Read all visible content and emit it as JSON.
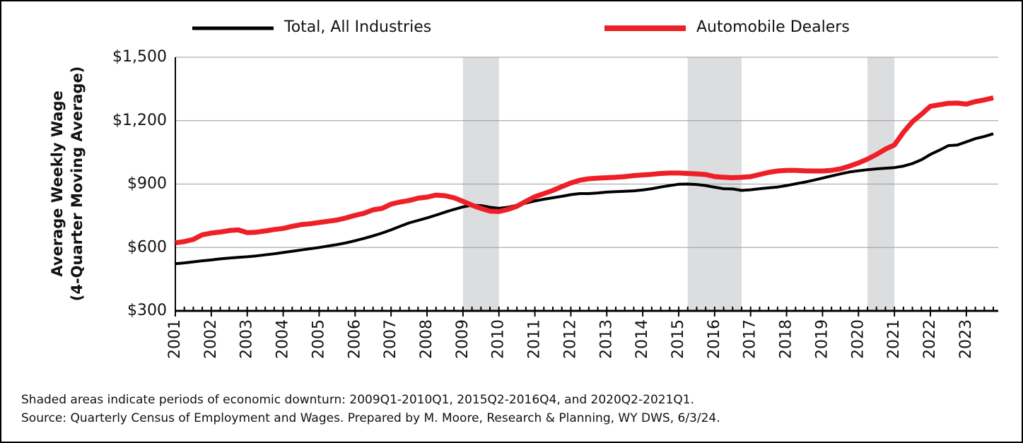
{
  "chart_data": {
    "type": "line",
    "legend": "top",
    "ylabel": [
      "Average Weekly Wage",
      "(4-Quarter Moving Average)"
    ],
    "notes": [
      "Shaded areas indicate periods of economic downturn: 2009Q1-2010Q1, 2015Q2-2016Q4, and 2020Q2-2021Q1.",
      "Source: Quarterly Census of Employment and Wages. Prepared by M. Moore, Research & Planning, WY DWS, 6/3/24."
    ],
    "shaded": [
      [
        2009,
        2010
      ],
      [
        2015.25,
        2016.75
      ],
      [
        2020.25,
        2021
      ]
    ],
    "shade_color": "#dcdddf",
    "grid": true,
    "xlim": [
      2001,
      2023.75
    ],
    "xticks": [
      2001,
      2002,
      2003,
      2004,
      2005,
      2006,
      2007,
      2008,
      2009,
      2010,
      2011,
      2012,
      2013,
      2014,
      2015,
      2016,
      2017,
      2018,
      2019,
      2020,
      2021,
      2022,
      2023
    ],
    "ylim": [
      300,
      1500
    ],
    "yticks": [
      {
        "value": 300,
        "label": "$300"
      },
      {
        "value": 600,
        "label": "$600"
      },
      {
        "value": 900,
        "label": "$900"
      },
      {
        "value": 1200,
        "label": "$1,200"
      },
      {
        "value": 1500,
        "label": "$1,500"
      }
    ],
    "x": [
      2001,
      2001.25,
      2001.5,
      2001.75,
      2002,
      2002.25,
      2002.5,
      2002.75,
      2003,
      2003.25,
      2003.5,
      2003.75,
      2004,
      2004.25,
      2004.5,
      2004.75,
      2005,
      2005.25,
      2005.5,
      2005.75,
      2006,
      2006.25,
      2006.5,
      2006.75,
      2007,
      2007.25,
      2007.5,
      2007.75,
      2008,
      2008.25,
      2008.5,
      2008.75,
      2009,
      2009.25,
      2009.5,
      2009.75,
      2010,
      2010.25,
      2010.5,
      2010.75,
      2011,
      2011.25,
      2011.5,
      2011.75,
      2012,
      2012.25,
      2012.5,
      2012.75,
      2013,
      2013.25,
      2013.5,
      2013.75,
      2014,
      2014.25,
      2014.5,
      2014.75,
      2015,
      2015.25,
      2015.5,
      2015.75,
      2016,
      2016.25,
      2016.5,
      2016.75,
      2017,
      2017.25,
      2017.5,
      2017.75,
      2018,
      2018.25,
      2018.5,
      2018.75,
      2019,
      2019.25,
      2019.5,
      2019.75,
      2020,
      2020.25,
      2020.5,
      2020.75,
      2021,
      2021.25,
      2021.5,
      2021.75,
      2022,
      2022.25,
      2022.5,
      2022.75,
      2023,
      2023.25,
      2023.5,
      2023.75
    ],
    "series": [
      {
        "name": "Total, All Industries",
        "color": "#000000",
        "values": [
          523,
          527,
          532,
          537,
          541,
          546,
          550,
          553,
          556,
          560,
          565,
          570,
          576,
          582,
          588,
          594,
          600,
          607,
          614,
          622,
          632,
          643,
          655,
          668,
          683,
          700,
          716,
          728,
          740,
          753,
          767,
          780,
          792,
          800,
          798,
          790,
          785,
          790,
          800,
          810,
          820,
          828,
          835,
          842,
          850,
          855,
          855,
          858,
          862,
          864,
          866,
          868,
          872,
          878,
          886,
          893,
          899,
          900,
          898,
          893,
          885,
          878,
          877,
          870,
          873,
          878,
          882,
          886,
          893,
          901,
          909,
          918,
          928,
          938,
          948,
          957,
          963,
          968,
          972,
          975,
          978,
          985,
          997,
          1015,
          1040,
          1060,
          1082,
          1085,
          1100,
          1115,
          1125,
          1138
        ]
      },
      {
        "name": "Automobile Dealers",
        "color": "#ee2027",
        "values": [
          622,
          628,
          638,
          660,
          668,
          673,
          680,
          683,
          670,
          672,
          678,
          685,
          690,
          700,
          708,
          712,
          718,
          724,
          730,
          740,
          752,
          762,
          778,
          785,
          805,
          815,
          822,
          833,
          838,
          848,
          845,
          835,
          818,
          800,
          785,
          772,
          770,
          780,
          795,
          818,
          840,
          855,
          870,
          888,
          905,
          918,
          925,
          928,
          930,
          932,
          935,
          940,
          943,
          946,
          950,
          952,
          952,
          950,
          948,
          945,
          935,
          932,
          930,
          932,
          935,
          945,
          955,
          962,
          965,
          965,
          963,
          962,
          962,
          965,
          972,
          985,
          1000,
          1018,
          1040,
          1065,
          1085,
          1145,
          1195,
          1230,
          1268,
          1275,
          1282,
          1283,
          1278,
          1290,
          1298,
          1308
        ]
      }
    ]
  }
}
